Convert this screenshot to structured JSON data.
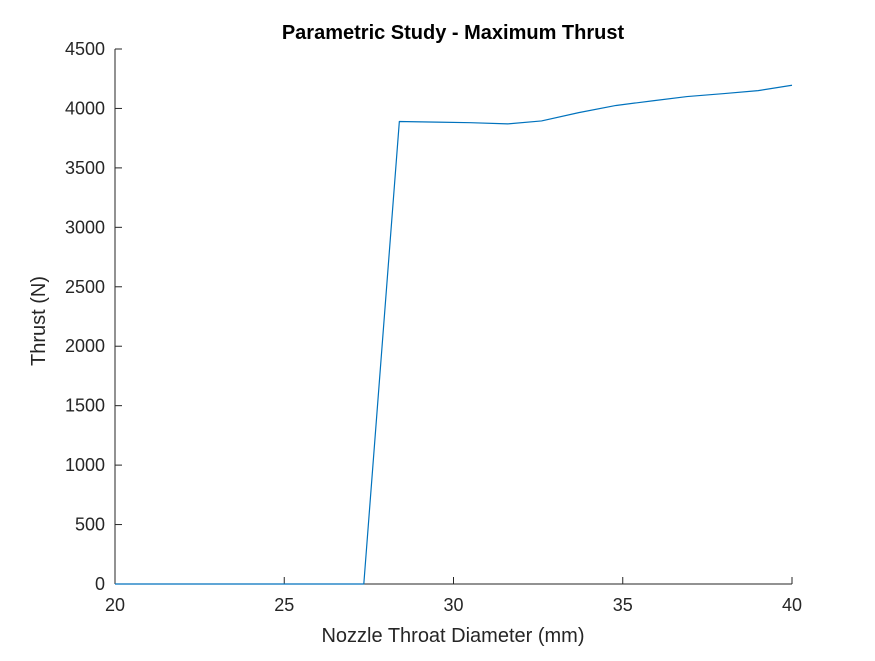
{
  "chart_data": {
    "type": "line",
    "title": "Parametric Study - Maximum Thrust",
    "xlabel": "Nozzle Throat Diameter (mm)",
    "ylabel": "Thrust (N)",
    "xlim": [
      20,
      40
    ],
    "ylim": [
      0,
      4500
    ],
    "xticks": [
      20,
      25,
      30,
      35,
      40
    ],
    "yticks": [
      0,
      500,
      1000,
      1500,
      2000,
      2500,
      3000,
      3500,
      4000,
      4500
    ],
    "grid": false,
    "box": false,
    "line_color": "#0072BD",
    "series": [
      {
        "x": [
          20,
          20.5,
          21,
          22,
          23,
          24,
          25,
          26,
          27,
          27.35,
          28.4,
          29.5,
          30.5,
          31.6,
          32.6,
          33.7,
          34.8,
          35.9,
          36.9,
          38,
          39,
          40
        ],
        "y": [
          0,
          0,
          0,
          0,
          0,
          0,
          0,
          0,
          0,
          0,
          3890,
          3885,
          3880,
          3870,
          3895,
          3965,
          4025,
          4065,
          4100,
          4125,
          4150,
          4195
        ]
      }
    ]
  }
}
